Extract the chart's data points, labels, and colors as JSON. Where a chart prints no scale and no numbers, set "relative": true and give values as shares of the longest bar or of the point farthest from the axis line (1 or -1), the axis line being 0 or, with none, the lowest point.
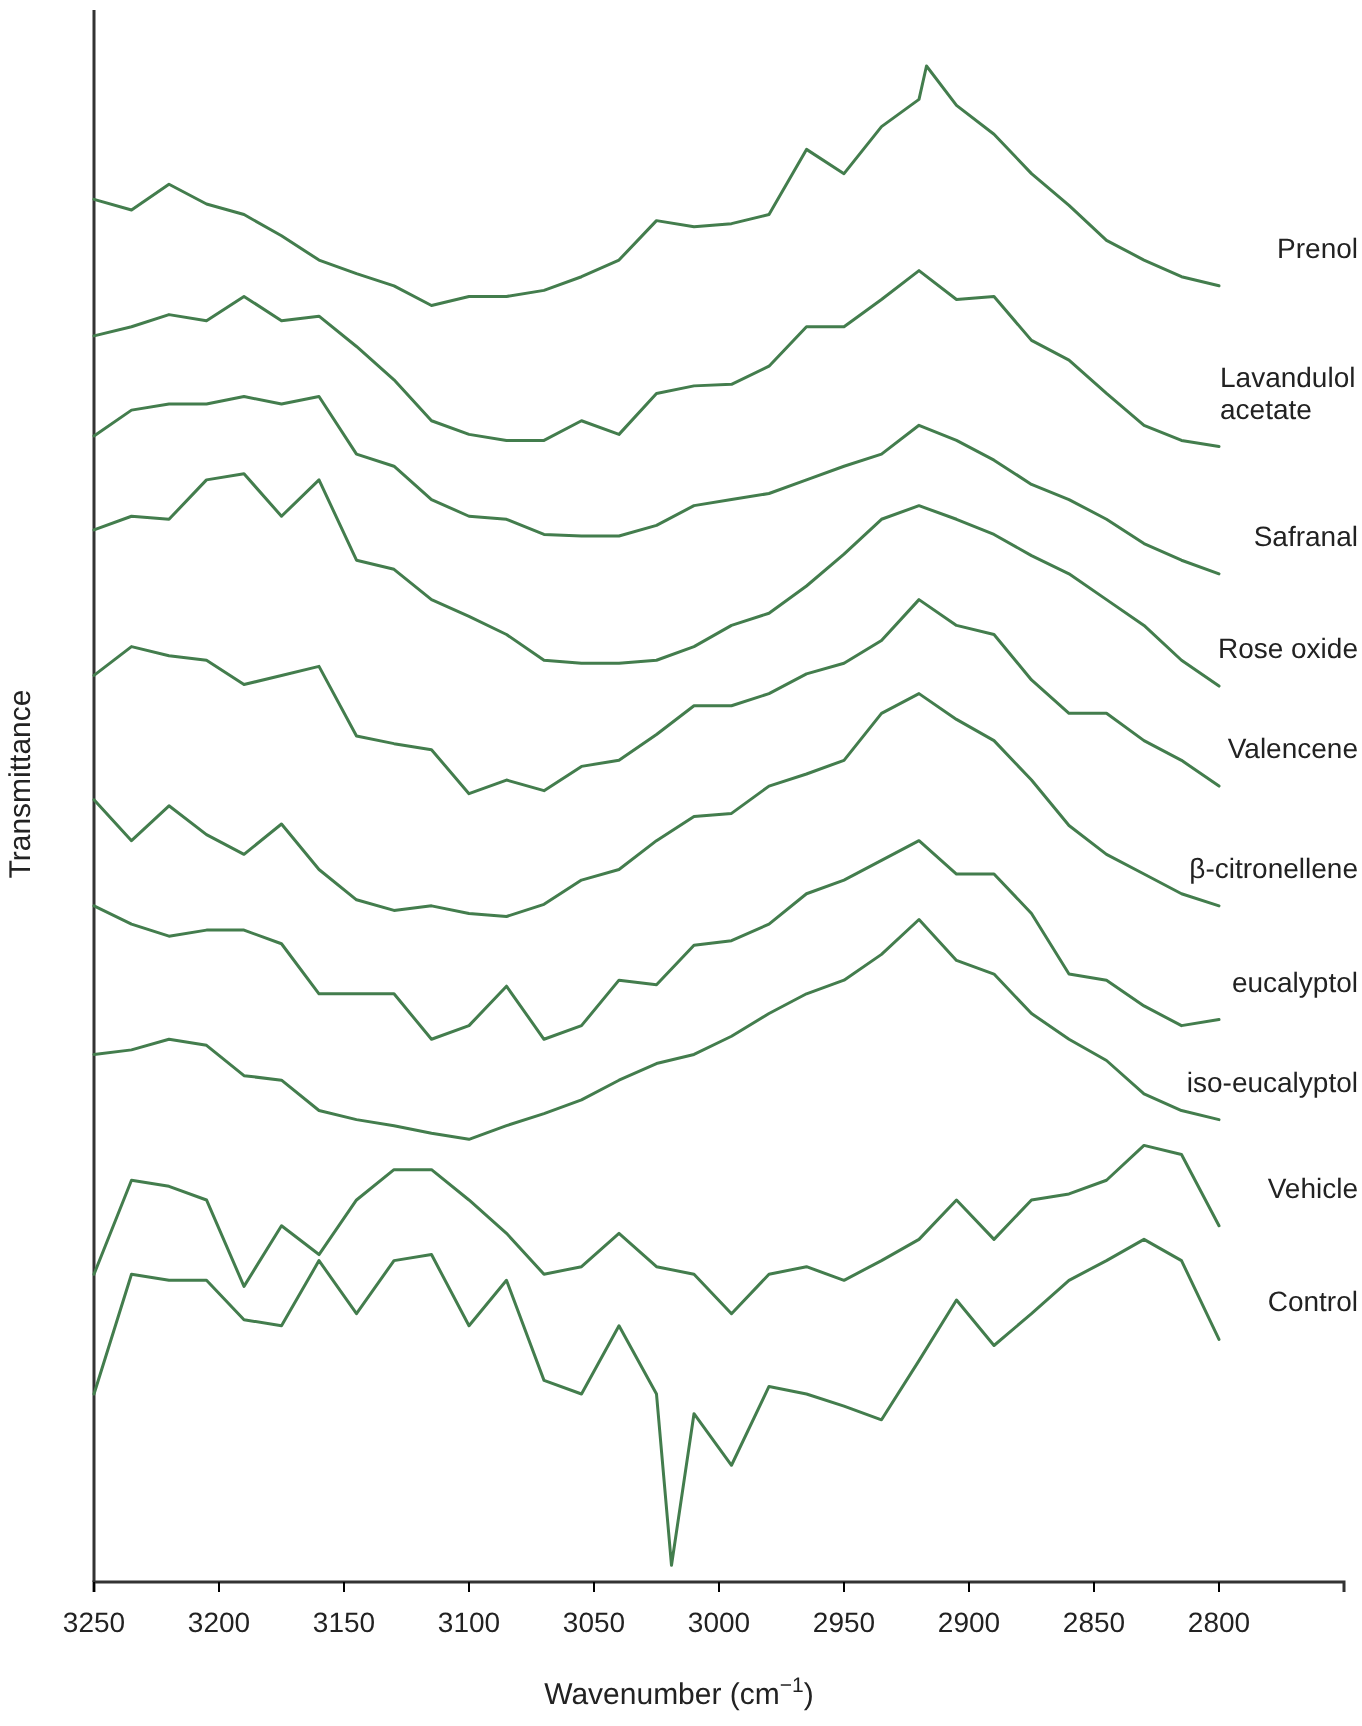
{
  "chart_data": {
    "type": "line",
    "relative": true,
    "tick_labels": "x",
    "xlabel": "Wavenumber (cm$^{−1}$)",
    "ylabel": "Transmittance",
    "xlim": [
      3250,
      2750
    ],
    "xticks": [
      3250,
      3200,
      3150,
      3100,
      3050,
      3000,
      2950,
      2900,
      2850,
      2800
    ],
    "x": [
      3250,
      3235,
      3220,
      3205,
      3190,
      3175,
      3160,
      3145,
      3130,
      3115,
      3100,
      3085,
      3070,
      3055,
      3040,
      3025,
      3010,
      2995,
      2980,
      2965,
      2950,
      2935,
      2920,
      2905,
      2890,
      2875,
      2860,
      2845,
      2830,
      2815,
      2800
    ],
    "series": [
      {
        "name": "Prenol",
        "color": "#437d4d",
        "x": [
          3250,
          3235,
          3220,
          3205,
          3190,
          3175,
          3160,
          3145,
          3130,
          3115,
          3100,
          3085,
          3070,
          3055,
          3040,
          3025,
          3010,
          2995,
          2980,
          2965,
          2950,
          2935,
          2920,
          2917,
          2905,
          2890,
          2875,
          2860,
          2845,
          2830,
          2815,
          2800
        ],
        "values": [
          0.912,
          0.905,
          0.922,
          0.909,
          0.902,
          0.888,
          0.872,
          0.863,
          0.855,
          0.842,
          0.848,
          0.848,
          0.852,
          0.861,
          0.872,
          0.898,
          0.894,
          0.896,
          0.902,
          0.945,
          0.929,
          0.96,
          0.978,
          1.0,
          0.974,
          0.955,
          0.929,
          0.908,
          0.885,
          0.872,
          0.861,
          0.855
        ]
      },
      {
        "name": "Lavandulol acetate",
        "color": "#437d4d",
        "values": [
          0.822,
          0.828,
          0.836,
          0.832,
          0.848,
          0.832,
          0.835,
          0.815,
          0.793,
          0.766,
          0.757,
          0.753,
          0.753,
          0.766,
          0.757,
          0.784,
          0.789,
          0.79,
          0.802,
          0.828,
          0.828,
          0.846,
          0.865,
          0.846,
          0.848,
          0.819,
          0.806,
          0.784,
          0.763,
          0.753,
          0.749
        ]
      },
      {
        "name": "Safranal",
        "color": "#437d4d",
        "values": [
          0.756,
          0.773,
          0.777,
          0.777,
          0.782,
          0.777,
          0.782,
          0.744,
          0.736,
          0.714,
          0.703,
          0.701,
          0.691,
          0.69,
          0.69,
          0.697,
          0.71,
          0.714,
          0.718,
          0.727,
          0.736,
          0.744,
          0.763,
          0.753,
          0.74,
          0.724,
          0.714,
          0.701,
          0.685,
          0.674,
          0.665
        ]
      },
      {
        "name": "Rose oxide",
        "color": "#437d4d",
        "values": [
          0.694,
          0.703,
          0.701,
          0.727,
          0.731,
          0.703,
          0.727,
          0.674,
          0.668,
          0.648,
          0.637,
          0.625,
          0.608,
          0.606,
          0.606,
          0.608,
          0.617,
          0.631,
          0.639,
          0.657,
          0.678,
          0.701,
          0.71,
          0.701,
          0.691,
          0.677,
          0.665,
          0.648,
          0.631,
          0.608,
          0.591
        ]
      },
      {
        "name": "Valencene",
        "color": "#437d4d",
        "values": [
          0.598,
          0.617,
          0.611,
          0.608,
          0.592,
          0.598,
          0.604,
          0.558,
          0.553,
          0.549,
          0.52,
          0.529,
          0.522,
          0.538,
          0.542,
          0.559,
          0.578,
          0.578,
          0.586,
          0.599,
          0.606,
          0.621,
          0.648,
          0.631,
          0.625,
          0.595,
          0.573,
          0.573,
          0.555,
          0.542,
          0.525
        ]
      },
      {
        "name": "β-citronellene",
        "color": "#437d4d",
        "values": [
          0.516,
          0.489,
          0.512,
          0.493,
          0.48,
          0.5,
          0.47,
          0.45,
          0.443,
          0.446,
          0.441,
          0.439,
          0.447,
          0.463,
          0.47,
          0.489,
          0.505,
          0.507,
          0.525,
          0.533,
          0.542,
          0.573,
          0.586,
          0.569,
          0.555,
          0.529,
          0.499,
          0.48,
          0.467,
          0.454,
          0.446
        ]
      },
      {
        "name": "eucalyptol",
        "color": "#437d4d",
        "values": [
          0.446,
          0.434,
          0.426,
          0.43,
          0.43,
          0.421,
          0.388,
          0.388,
          0.388,
          0.358,
          0.367,
          0.393,
          0.358,
          0.367,
          0.397,
          0.394,
          0.42,
          0.423,
          0.434,
          0.454,
          0.463,
          0.476,
          0.489,
          0.467,
          0.467,
          0.441,
          0.401,
          0.397,
          0.38,
          0.367,
          0.371
        ]
      },
      {
        "name": "iso-eucalyptol",
        "color": "#437d4d",
        "values": [
          0.348,
          0.351,
          0.358,
          0.354,
          0.334,
          0.331,
          0.311,
          0.305,
          0.301,
          0.296,
          0.292,
          0.301,
          0.309,
          0.318,
          0.331,
          0.342,
          0.348,
          0.36,
          0.375,
          0.388,
          0.397,
          0.414,
          0.437,
          0.41,
          0.401,
          0.375,
          0.358,
          0.344,
          0.322,
          0.311,
          0.305
        ]
      },
      {
        "name": "Vehicle",
        "color": "#437d4d",
        "values": [
          0.203,
          0.265,
          0.261,
          0.252,
          0.195,
          0.235,
          0.216,
          0.252,
          0.272,
          0.272,
          0.252,
          0.23,
          0.203,
          0.208,
          0.23,
          0.208,
          0.203,
          0.177,
          0.203,
          0.208,
          0.199,
          0.212,
          0.226,
          0.252,
          0.226,
          0.252,
          0.256,
          0.265,
          0.288,
          0.282,
          0.235
        ]
      },
      {
        "name": "Control",
        "color": "#437d4d",
        "x": [
          3250,
          3235,
          3220,
          3205,
          3190,
          3175,
          3160,
          3145,
          3130,
          3115,
          3100,
          3085,
          3070,
          3055,
          3040,
          3025,
          3019,
          3010,
          2995,
          2980,
          2965,
          2950,
          2935,
          2920,
          2905,
          2890,
          2875,
          2860,
          2845,
          2830,
          2815,
          2800
        ],
        "values": [
          0.124,
          0.203,
          0.199,
          0.199,
          0.173,
          0.169,
          0.212,
          0.177,
          0.212,
          0.216,
          0.169,
          0.199,
          0.133,
          0.124,
          0.169,
          0.124,
          0.011,
          0.111,
          0.077,
          0.129,
          0.124,
          0.116,
          0.107,
          0.146,
          0.186,
          0.156,
          0.177,
          0.199,
          0.212,
          0.226,
          0.212,
          0.16
        ]
      }
    ]
  }
}
